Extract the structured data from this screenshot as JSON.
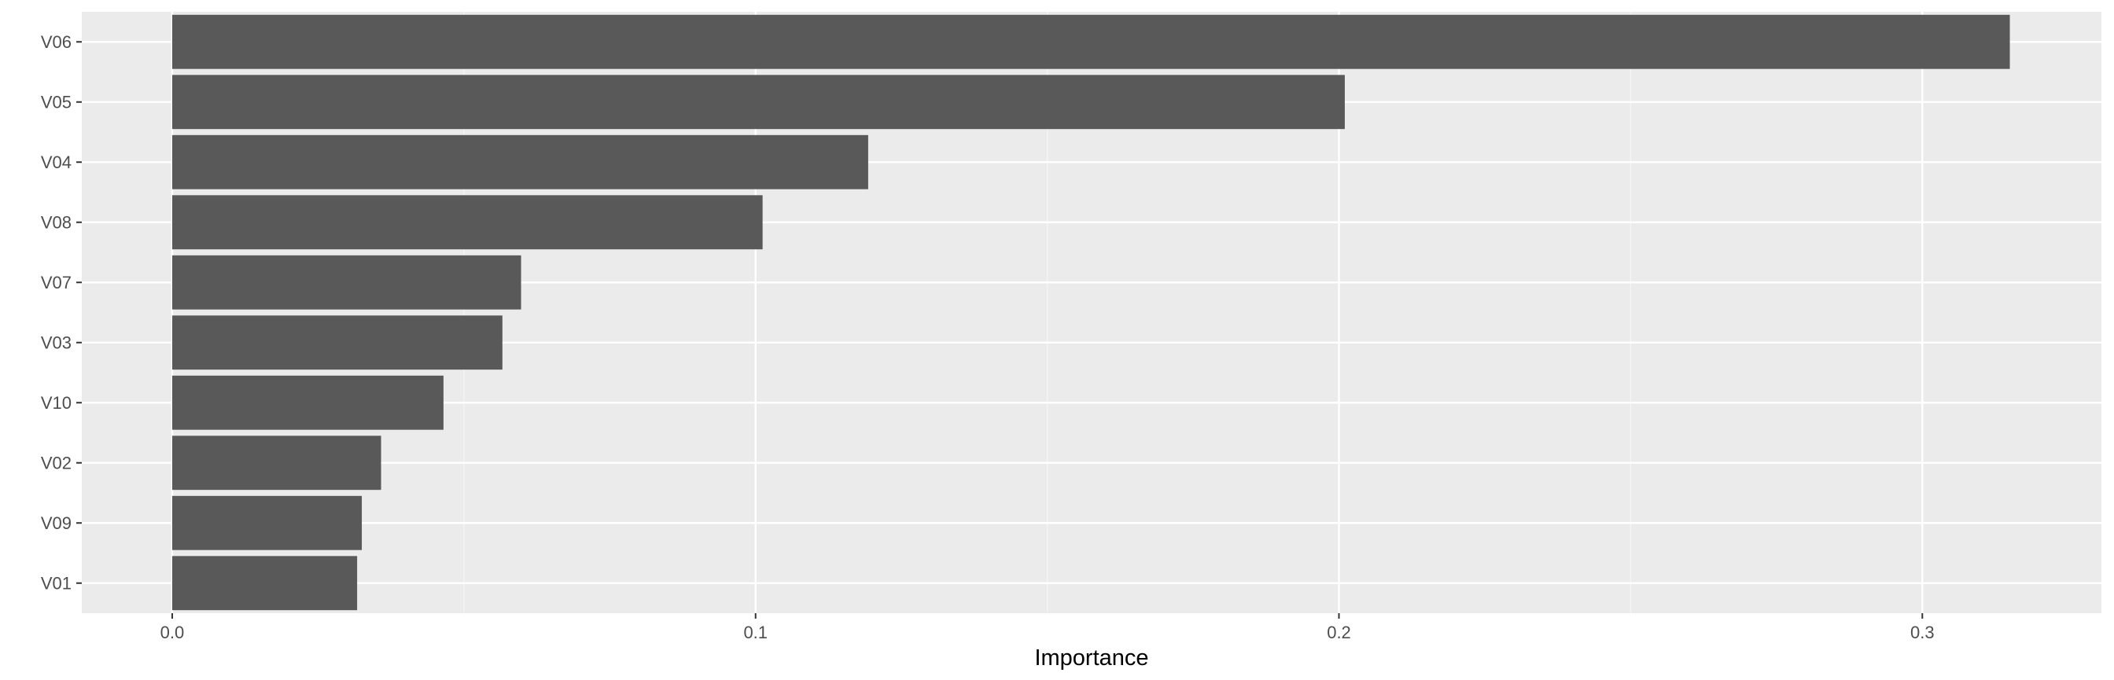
{
  "chart_data": {
    "type": "bar",
    "orientation": "horizontal",
    "title": "",
    "xlabel": "Importance",
    "ylabel": "",
    "categories": [
      "V06",
      "V05",
      "V04",
      "V08",
      "V07",
      "V03",
      "V10",
      "V02",
      "V09",
      "V01"
    ],
    "values": [
      0.315,
      0.201,
      0.1193,
      0.1012,
      0.0598,
      0.0566,
      0.0465,
      0.0358,
      0.0325,
      0.0317
    ],
    "xlim": [
      -0.0155,
      0.3307
    ],
    "xticks": [
      0.0,
      0.1,
      0.2,
      0.3
    ],
    "xtick_labels": [
      "0.0",
      "0.1",
      "0.2",
      "0.3"
    ],
    "grid": true,
    "legend": "none",
    "colors": {
      "bar": "#595959",
      "panel_background": "#ebebeb",
      "grid_major": "#ffffff",
      "grid_minor": "#f5f5f5",
      "tick_text": "#4d4d4d",
      "tick_mark": "#333333",
      "title_text": "#000000"
    }
  }
}
